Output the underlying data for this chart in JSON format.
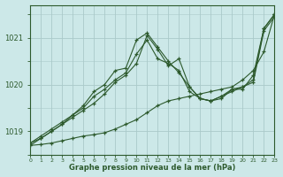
{
  "hours": [
    0,
    1,
    2,
    3,
    4,
    5,
    6,
    7,
    8,
    9,
    10,
    11,
    12,
    13,
    14,
    15,
    16,
    17,
    18,
    19,
    20,
    21,
    22,
    23
  ],
  "line_jagged": [
    1018.7,
    1018.85,
    1019.0,
    1019.15,
    1019.3,
    1019.45,
    1019.6,
    1019.8,
    1020.05,
    1020.2,
    1020.45,
    1021.05,
    1020.75,
    1020.4,
    1020.55,
    1019.95,
    1019.7,
    1019.65,
    1019.75,
    1019.85,
    1019.95,
    1020.05,
    1021.15,
    1021.45
  ],
  "line_mid": [
    1018.75,
    1018.85,
    1019.0,
    1019.15,
    1019.35,
    1019.5,
    1019.75,
    1019.9,
    1020.1,
    1020.25,
    1020.65,
    1020.95,
    1020.55,
    1020.45,
    1020.3,
    1019.85,
    1019.7,
    1019.65,
    1019.75,
    1019.9,
    1019.95,
    1020.1,
    1021.2,
    1021.5
  ],
  "line_upper": [
    1018.75,
    1018.9,
    1019.05,
    1019.2,
    1019.35,
    1019.55,
    1019.85,
    1020.0,
    1020.3,
    1020.35,
    1020.95,
    1021.1,
    1020.8,
    1020.5,
    1020.25,
    1019.95,
    1019.7,
    1019.65,
    1019.7,
    1019.9,
    1019.9,
    1020.2,
    1021.2,
    1021.5
  ],
  "line_diagonal": [
    1018.7,
    1018.72,
    1018.75,
    1018.8,
    1018.85,
    1018.9,
    1018.93,
    1018.97,
    1019.05,
    1019.15,
    1019.25,
    1019.4,
    1019.55,
    1019.65,
    1019.7,
    1019.75,
    1019.8,
    1019.85,
    1019.9,
    1019.95,
    1020.1,
    1020.3,
    1020.7,
    1021.5
  ],
  "line_color": "#2d5a2d",
  "bg_color": "#cce8e8",
  "grid_color": "#aacaca",
  "xlabel": "Graphe pression niveau de la mer (hPa)",
  "yticks": [
    1019,
    1020,
    1021
  ],
  "ylim": [
    1018.5,
    1021.7
  ],
  "xlim": [
    0,
    23
  ]
}
